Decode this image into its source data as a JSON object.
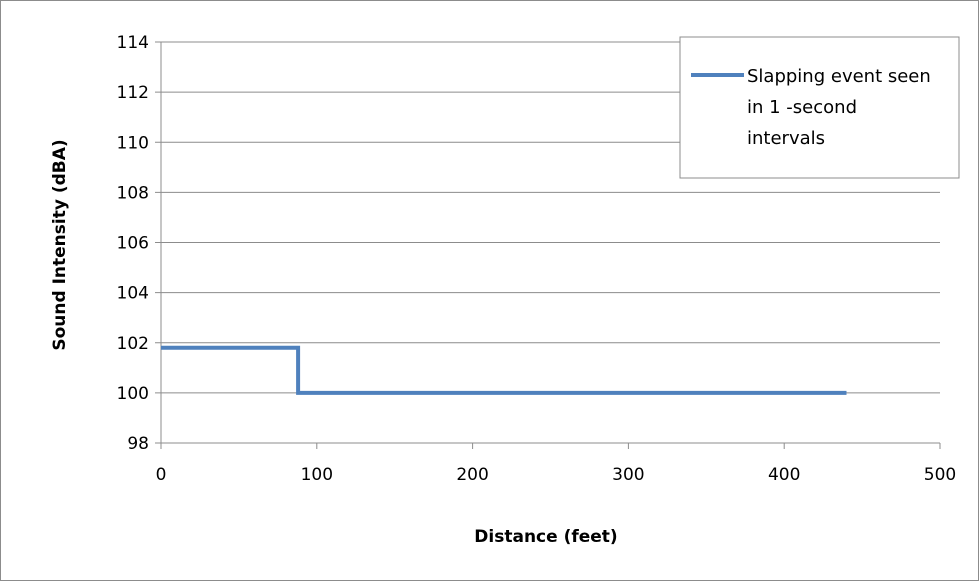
{
  "chart_data": {
    "type": "line",
    "title": "",
    "xlabel": "Distance (feet)",
    "ylabel": "Sound Intensity (dBA)",
    "xlim": [
      0,
      500
    ],
    "ylim": [
      98,
      114
    ],
    "x_ticks": [
      0,
      100,
      200,
      300,
      400,
      500
    ],
    "y_ticks": [
      98,
      100,
      102,
      104,
      106,
      108,
      110,
      112,
      114
    ],
    "grid": "horizontal",
    "legend_position": "top-right",
    "series": [
      {
        "name": "Slapping event seen in 1 -second intervals",
        "color": "#4f81bd",
        "step": true,
        "x": [
          0,
          88,
          88,
          440
        ],
        "y": [
          101.8,
          101.8,
          100,
          100
        ]
      }
    ],
    "legend_lines": [
      "Slapping event seen",
      "in 1 -second",
      "intervals"
    ]
  }
}
